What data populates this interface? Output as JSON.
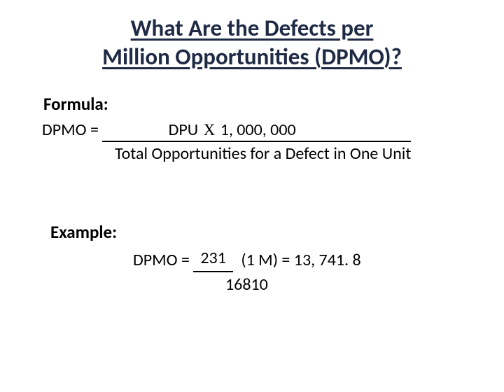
{
  "title_line1": "What Are the Defects per",
  "title_line2": "Million Opportunities (DPMO)?",
  "formula": {
    "label": "Formula:",
    "lhs": "DPMO = ",
    "numerator_pre": "DPU ",
    "numerator_x": "X",
    "numerator_post": " 1, 000, 000",
    "denominator": "Total Opportunities for a Defect in One Unit"
  },
  "example": {
    "label": "Example:",
    "lhs": "DPMO = ",
    "numerator": "231",
    "tail": " (1 M) =  13, 741. 8",
    "denominator": "16810"
  },
  "colors": {
    "title": "#1f2a44",
    "text": "#000000",
    "background": "#ffffff"
  }
}
